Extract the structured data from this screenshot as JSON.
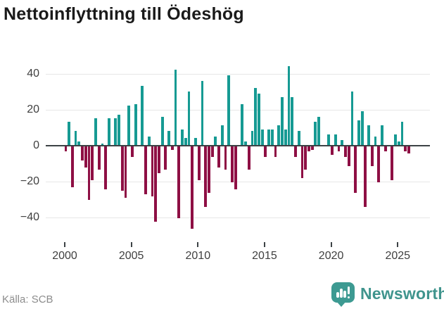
{
  "title": "Nettoinflyttning till Ödeshög",
  "source": "Källa: SCB",
  "brand": {
    "name": "Newsworthy"
  },
  "colors": {
    "positive_bar": "#169a93",
    "negative_bar": "#8e0f44",
    "axis": "#3c4245",
    "grid": "#e7e7e7",
    "brand_teal": "#3d9a92"
  },
  "chart_data": {
    "type": "bar",
    "title": "Nettoinflyttning till Ödeshög",
    "xlabel": "",
    "ylabel": "",
    "x_start": "2000Q1",
    "frequency": "quarterly",
    "x_tick_years": [
      2000,
      2005,
      2010,
      2015,
      2020,
      2025
    ],
    "y_ticks": [
      40,
      20,
      0,
      -20,
      -40
    ],
    "y_tick_labels": [
      "40",
      "20",
      "0",
      "−20",
      "−40"
    ],
    "ylim": [
      -48,
      48
    ],
    "grid": true,
    "legend": "none",
    "series": [
      {
        "name": "Nettoinflyttning",
        "values": [
          -3,
          13,
          -23,
          8,
          2,
          -8,
          -12,
          -30,
          -19,
          15,
          -13,
          1,
          -24,
          15,
          0,
          15,
          17,
          -25,
          -29,
          22,
          -6,
          23,
          0,
          33,
          -27,
          5,
          -28,
          -42,
          -15,
          16,
          -13,
          8,
          -2,
          42,
          -40,
          9,
          4,
          30,
          -46,
          4,
          -19,
          36,
          -34,
          -26,
          -6,
          5,
          -12,
          11,
          -13,
          39,
          -20,
          -24,
          0,
          23,
          2,
          -13,
          8,
          32,
          29,
          9,
          -6,
          9,
          9,
          -6,
          11,
          27,
          9,
          44,
          27,
          -6,
          8,
          -18,
          -13,
          -3,
          -2,
          13,
          16,
          0,
          0,
          6,
          -5,
          6,
          -3,
          3,
          -6,
          -11,
          30,
          -26,
          14,
          19,
          -34,
          11,
          -11,
          5,
          -20,
          11,
          -3,
          0,
          -19,
          6,
          2,
          13,
          -3,
          -4
        ]
      }
    ]
  }
}
